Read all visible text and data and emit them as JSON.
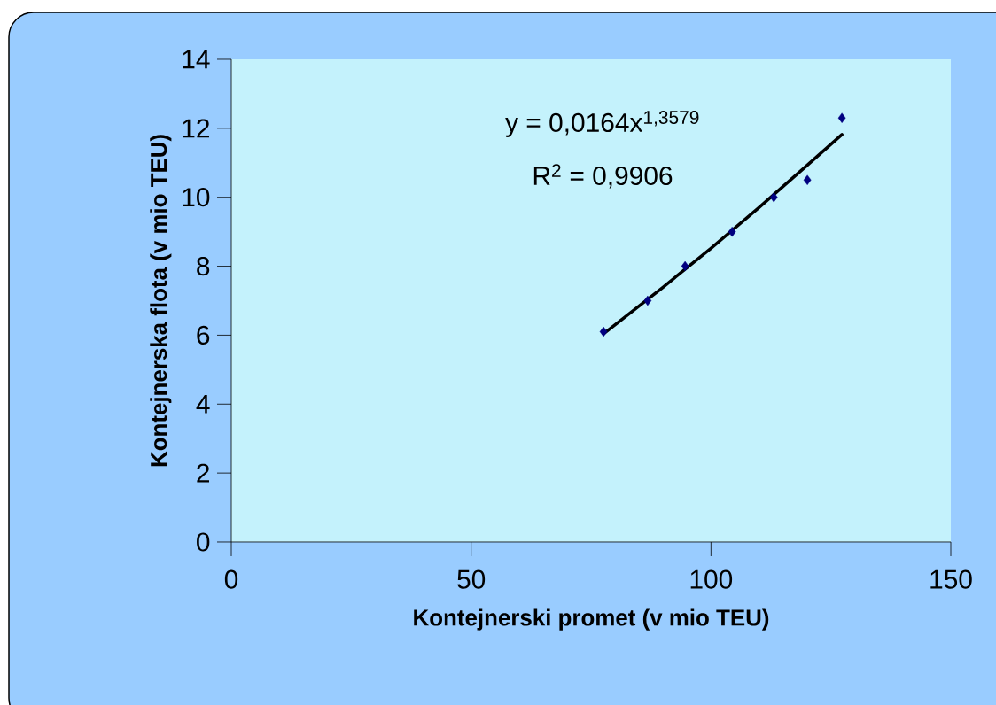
{
  "chart_data": {
    "type": "scatter",
    "xlabel": "Kontejnerski promet (v mio TEU)",
    "ylabel": "Kontejnerska flota (v mio TEU)",
    "annotations": [
      "y = 0,0164x$^{1,3579}$",
      "R$^{2}$ = 0,9906"
    ],
    "x": [
      77.6,
      86.8,
      94.6,
      104.4,
      113.1,
      120.1,
      127.3
    ],
    "series": [
      {
        "color": "#000080",
        "marker": "diamond",
        "values": [
          6.1,
          7.0,
          8.0,
          9.0,
          10.0,
          10.5,
          12.3
        ]
      },
      {
        "type": "line",
        "color": "#000000",
        "marker": "none",
        "line_style": "solid",
        "x": [
          77.6,
          90,
          100,
          110,
          120,
          127.3
        ],
        "values": [
          6.04,
          7.39,
          8.52,
          9.7,
          10.92,
          11.82
        ]
      }
    ],
    "xlim": [
      0,
      150
    ],
    "xticks": [
      0,
      50,
      100,
      150
    ],
    "ylim": [
      0,
      14
    ],
    "yticks": [
      0,
      2,
      4,
      6,
      8,
      10,
      12,
      14
    ]
  }
}
